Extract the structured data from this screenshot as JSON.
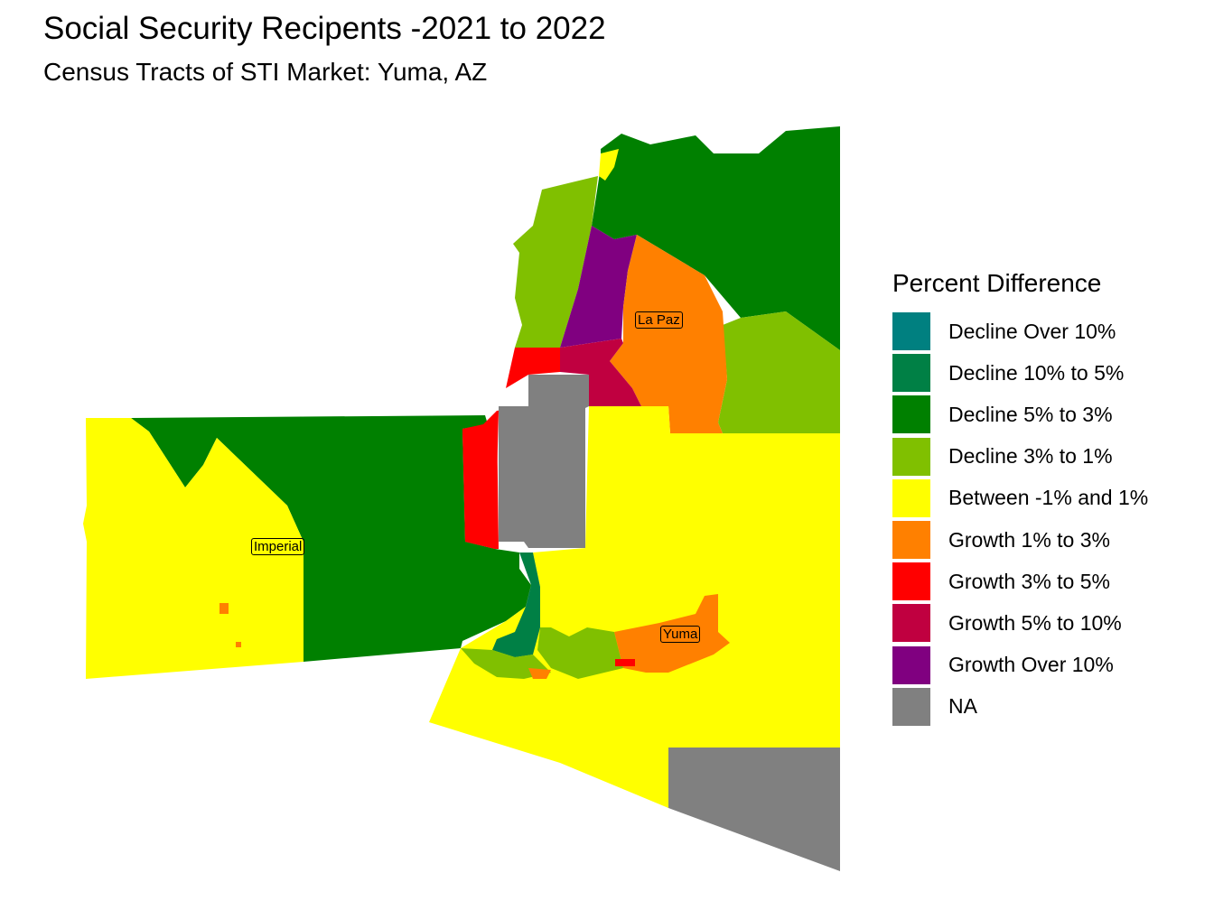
{
  "map": {
    "title": "Social Security Recipents -2021 to 2022",
    "subtitle": "Census Tracts of STI Market: Yuma, AZ",
    "county_labels": [
      "Imperial",
      "La Paz",
      "Yuma"
    ]
  },
  "legend": {
    "title": "Percent Difference",
    "items": [
      {
        "label": "Decline Over 10%",
        "color": "#008080"
      },
      {
        "label": "Decline 10% to 5%",
        "color": "#008045"
      },
      {
        "label": "Decline 5% to 3%",
        "color": "#008000"
      },
      {
        "label": "Decline 3% to 1%",
        "color": "#80C000"
      },
      {
        "label": "Between -1% and 1%",
        "color": "#FFFF00"
      },
      {
        "label": "Growth 1% to 3%",
        "color": "#FF8000"
      },
      {
        "label": "Growth 3% to 5%",
        "color": "#FF0000"
      },
      {
        "label": "Growth 5% to 10%",
        "color": "#C00040"
      },
      {
        "label": "Growth Over 10%",
        "color": "#800080"
      },
      {
        "label": "NA",
        "color": "#808080"
      }
    ]
  }
}
